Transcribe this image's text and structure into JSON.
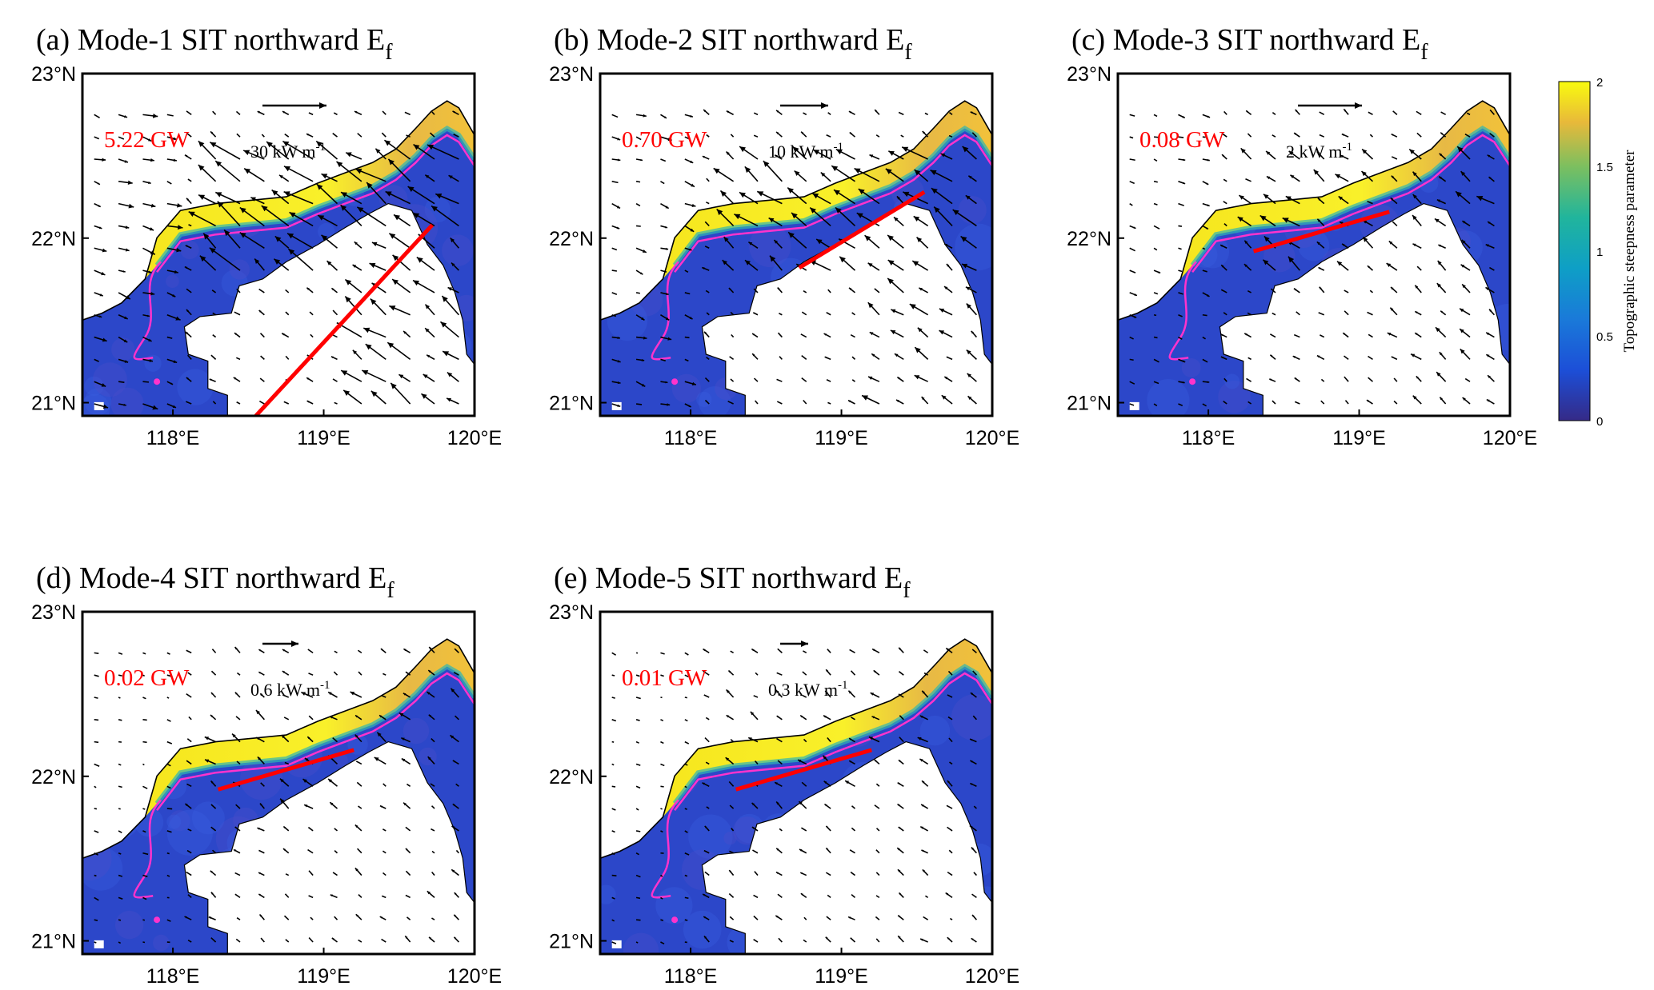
{
  "figure": {
    "colorbar": {
      "label": "Topographic steepness parameter",
      "ticks": [
        "2",
        "1.5",
        "1",
        "0.5",
        "0"
      ],
      "range": [
        0,
        2
      ],
      "colormap": "parula"
    },
    "colors": {
      "arrow": "#000000",
      "transect": "#ff0000",
      "contour": "#ff33cc",
      "coast": "#000000",
      "power_text": "#ff0000"
    }
  },
  "chart_data": [
    {
      "type": "vector-map",
      "panel": "(a)",
      "title": "Mode-1 SIT northward E",
      "title_sub": "f",
      "total_power": "5.22 GW",
      "scale_label": "30 kW m",
      "scale_unit_sup": "-1",
      "scale_value_kw_m": 30,
      "ylabels": [
        "23°N",
        "22°N",
        "21°N"
      ],
      "xlabels": [
        "118°E",
        "119°E",
        "120°E"
      ],
      "lon_range": [
        117.4,
        120.0
      ],
      "lat_range": [
        20.92,
        23.0
      ],
      "transect": [
        [
          118.55,
          20.92
        ],
        [
          119.72,
          22.08
        ]
      ]
    },
    {
      "type": "vector-map",
      "panel": "(b)",
      "title": "Mode-2 SIT northward E",
      "title_sub": "f",
      "total_power": "0.70 GW",
      "scale_label": "10 kW m",
      "scale_unit_sup": "-1",
      "scale_value_kw_m": 10,
      "ylabels": [
        "23°N",
        "22°N",
        "21°N"
      ],
      "xlabels": [
        "118°E",
        "119°E",
        "120°E"
      ],
      "lon_range": [
        117.4,
        120.0
      ],
      "lat_range": [
        20.92,
        23.0
      ],
      "transect": [
        [
          118.72,
          21.82
        ],
        [
          119.55,
          22.28
        ]
      ]
    },
    {
      "type": "vector-map",
      "panel": "(c)",
      "title": "Mode-3 SIT northward E",
      "title_sub": "f",
      "total_power": "0.08 GW",
      "scale_label": "2 kW m",
      "scale_unit_sup": "-1",
      "scale_value_kw_m": 2,
      "ylabels": [
        "23°N",
        "22°N",
        "21°N"
      ],
      "xlabels": [
        "118°E",
        "119°E",
        "120°E"
      ],
      "lon_range": [
        117.4,
        120.0
      ],
      "lat_range": [
        20.92,
        23.0
      ],
      "transect": [
        [
          118.3,
          21.92
        ],
        [
          119.2,
          22.16
        ]
      ]
    },
    {
      "type": "vector-map",
      "panel": "(d)",
      "title": "Mode-4 SIT northward E",
      "title_sub": "f",
      "total_power": "0.02 GW",
      "scale_label": "0.6 kW m",
      "scale_unit_sup": "-1",
      "scale_value_kw_m": 0.6,
      "ylabels": [
        "23°N",
        "22°N",
        "21°N"
      ],
      "xlabels": [
        "118°E",
        "119°E",
        "120°E"
      ],
      "lon_range": [
        117.4,
        120.0
      ],
      "lat_range": [
        20.92,
        23.0
      ],
      "transect": [
        [
          118.3,
          21.92
        ],
        [
          119.2,
          22.16
        ]
      ]
    },
    {
      "type": "vector-map",
      "panel": "(e)",
      "title": "Mode-5 SIT northward E",
      "title_sub": "f",
      "total_power": "0.01 GW",
      "scale_label": "0.3 kW m",
      "scale_unit_sup": "-1",
      "scale_value_kw_m": 0.3,
      "ylabels": [
        "23°N",
        "22°N",
        "21°N"
      ],
      "xlabels": [
        "118°E",
        "119°E",
        "120°E"
      ],
      "lon_range": [
        117.4,
        120.0
      ],
      "lat_range": [
        20.92,
        23.0
      ],
      "transect": [
        [
          118.3,
          21.92
        ],
        [
          119.2,
          22.16
        ]
      ]
    }
  ]
}
